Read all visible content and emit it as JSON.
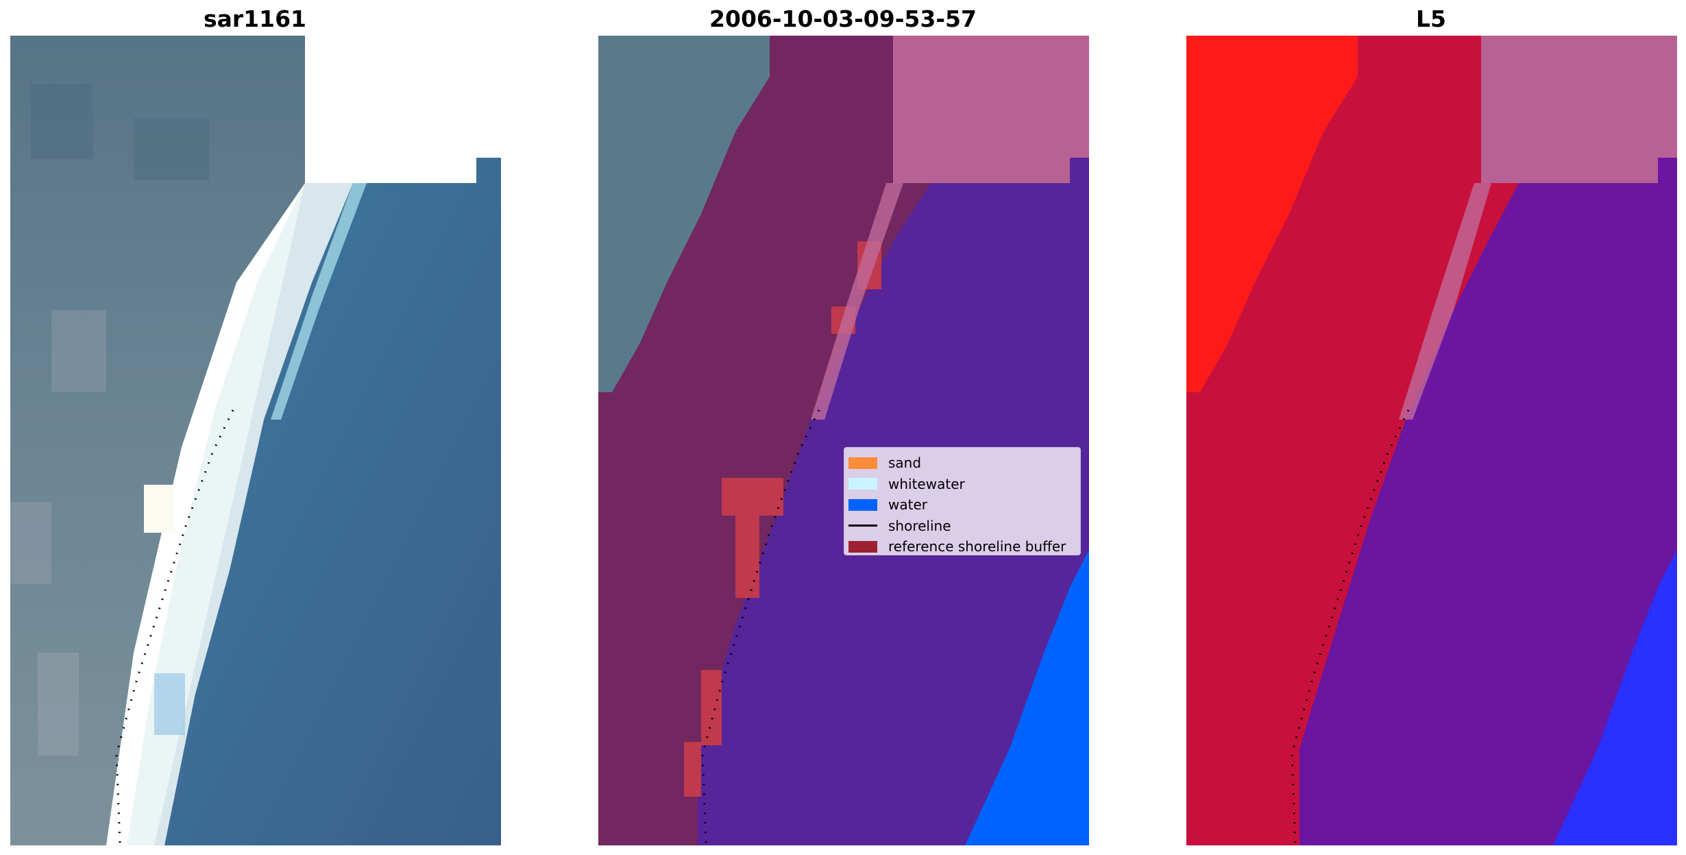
{
  "panels": [
    {
      "title": "sar1161"
    },
    {
      "title": "2006-10-03-09-53-57"
    },
    {
      "title": "L5"
    }
  ],
  "legend": {
    "items": [
      {
        "label": "sand",
        "color": "#ff8c3a",
        "kind": "patch"
      },
      {
        "label": "whitewater",
        "color": "#c8f5ff",
        "kind": "patch"
      },
      {
        "label": "water",
        "color": "#0062ff",
        "kind": "patch"
      },
      {
        "label": "shoreline",
        "color": "#000000",
        "kind": "line"
      },
      {
        "label": "reference shoreline buffer",
        "color": "#9b2230",
        "kind": "patch"
      }
    ]
  },
  "colors": {
    "land_rgb": "#5a7a8c",
    "water_rgb": "#3a6d96",
    "whitewater_rgb": "#e8f4f6",
    "land_classified": "#722760",
    "water_classified": "#56259a",
    "open_water_classified": "#0062ff",
    "buffer_classified": "#c0394d",
    "nodata_classified": "#b86194",
    "l5_land": "#c8103c",
    "l5_sand": "#ff1a1a",
    "l5_water": "#6a16a0",
    "l5_open_water": "#2a30ff"
  }
}
